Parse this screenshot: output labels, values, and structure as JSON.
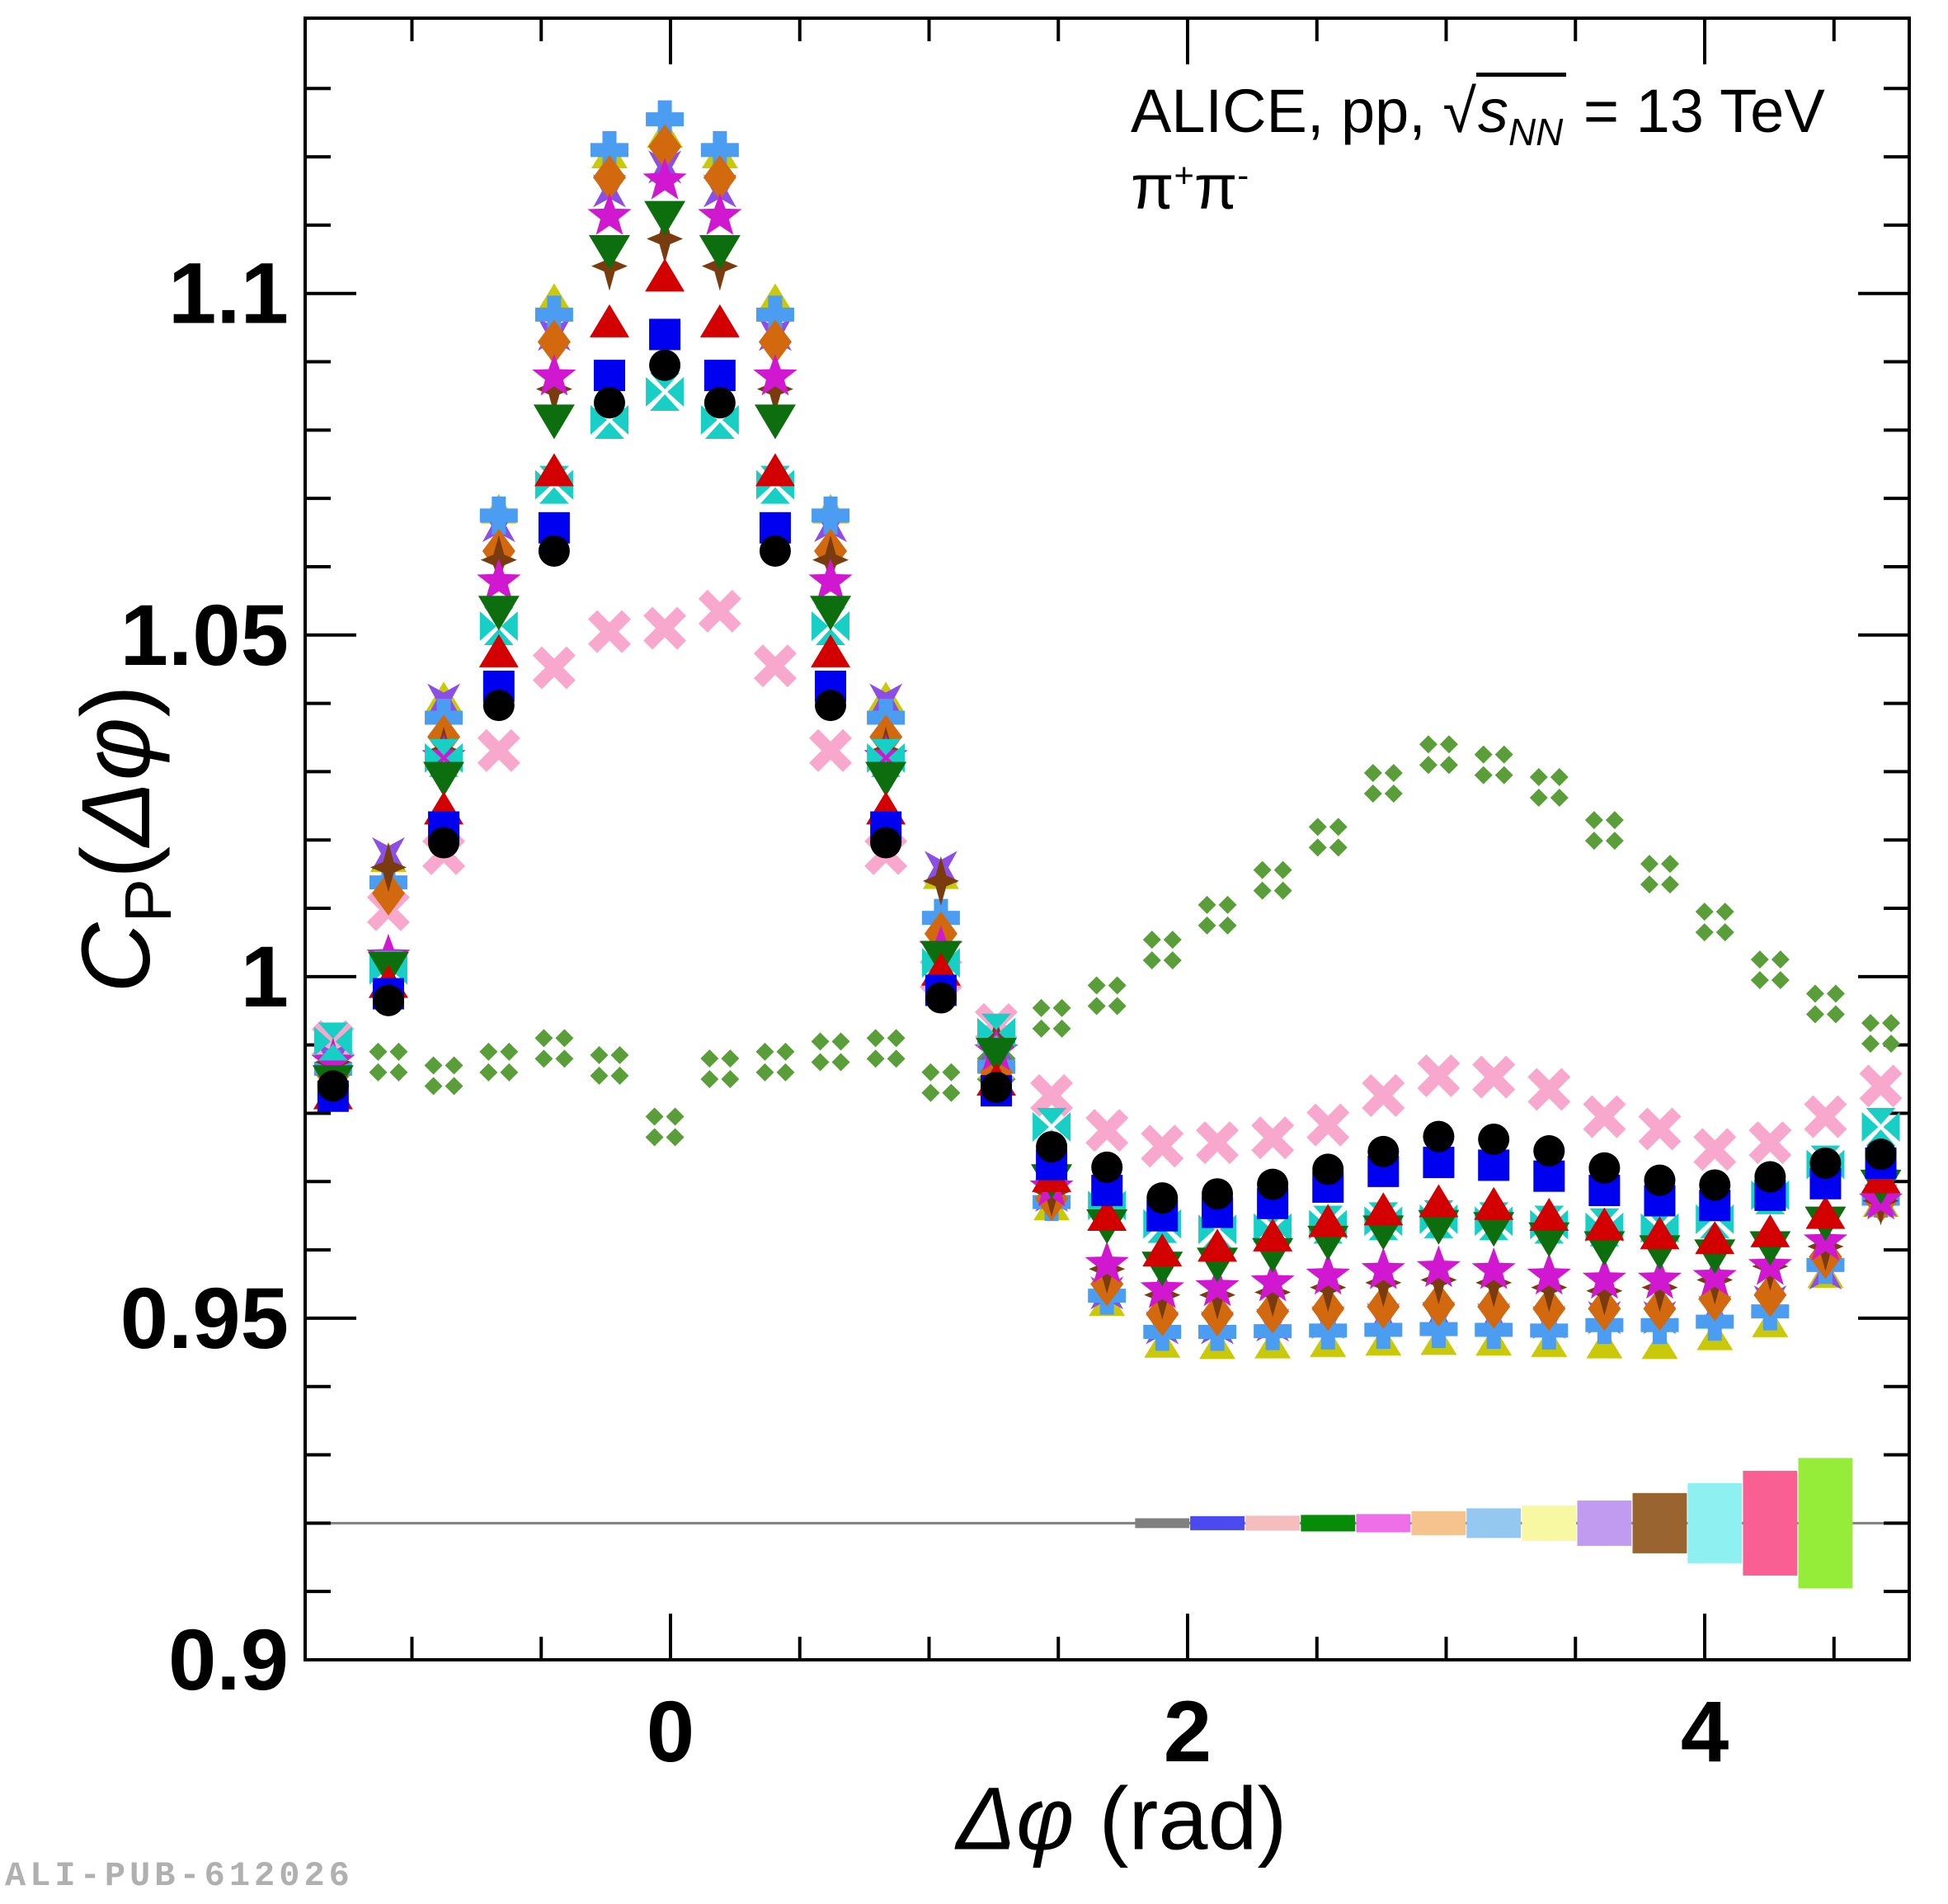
{
  "chart_data": {
    "type": "scatter",
    "annotation": {
      "line1_prefix": "ALICE, pp, ",
      "sqrt_symbol": "√",
      "sqrt_radicand": "s",
      "sqrt_subscript": "NN",
      "line1_suffix": " = 13 TeV",
      "pair_parts": [
        "π",
        "+",
        "π",
        "-"
      ]
    },
    "xlabel": {
      "phi": "Δφ",
      "rest": " (rad)"
    },
    "ylabel": {
      "c": "C",
      "sub": "P",
      "open": "(",
      "phi": "Δφ",
      "close": ")"
    },
    "watermark": "ALI-PUB-612026",
    "axes": {
      "x": {
        "min": -1.413,
        "max": 4.791,
        "major_ticks": [
          {
            "v": 0,
            "label": "0"
          },
          {
            "v": 2,
            "label": "2"
          },
          {
            "v": 4,
            "label": "4"
          }
        ],
        "minor_step": 0.5
      },
      "y": {
        "min": 0.9,
        "max": 1.1403,
        "major_ticks": [
          {
            "v": 0.9,
            "label": "0.9"
          },
          {
            "v": 0.95,
            "label": "0.95"
          },
          {
            "v": 1.0,
            "label": "1"
          },
          {
            "v": 1.05,
            "label": "1.05"
          },
          {
            "v": 1.1,
            "label": "1.1"
          }
        ],
        "minor_step": 0.01
      }
    },
    "x": [
      -1.305,
      -1.091,
      -0.877,
      -0.664,
      -0.45,
      -0.236,
      -0.022,
      0.191,
      0.405,
      0.619,
      0.833,
      1.046,
      1.26,
      1.474,
      1.688,
      1.902,
      2.115,
      2.329,
      2.543,
      2.757,
      2.971,
      3.184,
      3.398,
      3.612,
      3.826,
      4.039,
      4.253,
      4.467,
      4.681
    ],
    "series": [
      {
        "name": "green-clover",
        "marker": "four-diamond-clover",
        "color": "#5a9e3a",
        "values": [
          0.9905,
          0.9875,
          0.9855,
          0.9875,
          0.9895,
          0.987,
          0.978,
          0.9865,
          0.9875,
          0.989,
          0.9895,
          0.9845,
          0.9865,
          0.9939,
          0.9972,
          1.0039,
          1.009,
          1.0141,
          1.0204,
          1.0283,
          1.0325,
          1.031,
          1.0277,
          1.0214,
          1.015,
          1.008,
          1.001,
          0.996,
          0.9917
        ]
      },
      {
        "name": "pink-x",
        "marker": "thick-x",
        "color": "#f8a8cc",
        "values": [
          0.9905,
          1.0098,
          1.018,
          1.0331,
          1.0452,
          1.0505,
          1.051,
          1.0535,
          1.0455,
          1.0331,
          1.018,
          1.0003,
          0.993,
          0.9826,
          0.9775,
          0.9752,
          0.9757,
          0.9764,
          0.9783,
          0.9826,
          0.9855,
          0.9853,
          0.9835,
          0.9795,
          0.9777,
          0.9747,
          0.9757,
          0.9795,
          0.984
        ]
      },
      {
        "name": "yellow-triangle",
        "marker": "triangle-up-small",
        "color": "#c9c90a",
        "values": [
          0.988,
          1.0175,
          1.041,
          1.0685,
          1.0993,
          1.1205,
          1.1235,
          1.1205,
          1.0993,
          1.0685,
          1.041,
          1.015,
          0.9872,
          0.9665,
          0.9525,
          0.9464,
          0.9462,
          0.9463,
          0.9465,
          0.9467,
          0.9468,
          0.9467,
          0.9465,
          0.9463,
          0.9462,
          0.9475,
          0.9494,
          0.9566,
          0.967
        ]
      },
      {
        "name": "purple-x-star",
        "marker": "four-point-star-x",
        "color": "#8b4fe6",
        "values": [
          0.988,
          1.018,
          1.0405,
          1.066,
          1.094,
          1.115,
          1.1185,
          1.115,
          1.094,
          1.066,
          1.0405,
          1.016,
          0.99,
          0.968,
          0.9537,
          0.9486,
          0.9486,
          0.949,
          0.9494,
          0.9498,
          0.95,
          0.9498,
          0.9494,
          0.9501,
          0.9501,
          0.9509,
          0.9524,
          0.9566,
          0.9672
        ]
      },
      {
        "name": "lightblue-plus",
        "marker": "thick-plus",
        "color": "#4a9df0",
        "values": [
          0.9865,
          1.0138,
          1.0379,
          1.0675,
          1.0969,
          1.121,
          1.1255,
          1.121,
          1.0969,
          1.0675,
          1.0379,
          1.0086,
          0.9868,
          0.967,
          0.9533,
          0.948,
          0.948,
          0.9481,
          0.9482,
          0.9483,
          0.9484,
          0.9483,
          0.9482,
          0.949,
          0.949,
          0.9495,
          0.951,
          0.9578,
          0.9675
        ]
      },
      {
        "name": "orange-diamond",
        "marker": "diamond",
        "color": "#d2690e",
        "values": [
          0.9855,
          1.0122,
          1.0351,
          1.0623,
          1.0929,
          1.117,
          1.1215,
          1.117,
          1.0929,
          1.0623,
          1.0351,
          1.0063,
          0.986,
          0.9675,
          0.955,
          0.9506,
          0.9506,
          0.951,
          0.9514,
          0.9517,
          0.952,
          0.9517,
          0.9514,
          0.9514,
          0.9514,
          0.9528,
          0.9534,
          0.959,
          0.9672
        ]
      },
      {
        "name": "brown-four-star",
        "marker": "four-point-star",
        "color": "#7a3c0f",
        "values": [
          0.9875,
          1.016,
          1.033,
          1.061,
          1.086,
          1.104,
          1.108,
          1.104,
          1.086,
          1.061,
          1.033,
          1.014,
          0.9905,
          0.9685,
          0.9572,
          0.9534,
          0.9534,
          0.9538,
          0.9545,
          0.9552,
          0.9556,
          0.9552,
          0.9545,
          0.954,
          0.9545,
          0.9556,
          0.9576,
          0.9605,
          0.9672
        ]
      },
      {
        "name": "magenta-star",
        "marker": "five-point-star",
        "color": "#d018d0",
        "values": [
          0.9875,
          1.0029,
          1.0321,
          1.0578,
          1.0878,
          1.1113,
          1.1165,
          1.1113,
          1.0878,
          1.0578,
          1.0321,
          1.0041,
          0.989,
          0.9691,
          0.9579,
          0.9542,
          0.9545,
          0.9552,
          0.9562,
          0.957,
          0.9573,
          0.957,
          0.9562,
          0.9556,
          0.9556,
          0.956,
          0.9576,
          0.9612,
          0.9672
        ]
      },
      {
        "name": "cyan-cross",
        "marker": "cross-pattee",
        "color": "#17cfc4",
        "values": [
          0.9905,
          1.001,
          1.032,
          1.0513,
          1.072,
          1.0815,
          1.0856,
          1.0815,
          1.072,
          1.0513,
          1.032,
          1.002,
          0.9918,
          0.978,
          0.9665,
          0.9638,
          0.963,
          0.9632,
          0.9637,
          0.9642,
          0.9645,
          0.9642,
          0.9637,
          0.9633,
          0.9632,
          0.9645,
          0.968,
          0.9725,
          0.978
        ]
      },
      {
        "name": "green-triangle-down",
        "marker": "triangle-down",
        "color": "#0d6e0d",
        "values": [
          0.9845,
          1.0011,
          1.0289,
          1.0532,
          1.0812,
          1.106,
          1.111,
          1.106,
          1.0812,
          1.0532,
          1.0289,
          1.0027,
          0.9885,
          0.97,
          0.9634,
          0.9572,
          0.9578,
          0.9592,
          0.961,
          0.9625,
          0.9633,
          0.963,
          0.9615,
          0.9602,
          0.9596,
          0.959,
          0.9602,
          0.9638,
          0.9692
        ]
      },
      {
        "name": "red-triangle-up",
        "marker": "triangle-up",
        "color": "#d20000",
        "values": [
          0.983,
          0.9993,
          1.0247,
          1.0477,
          1.0742,
          1.096,
          1.1027,
          1.096,
          1.0742,
          1.0477,
          1.0247,
          1.0011,
          0.985,
          0.9709,
          0.9652,
          0.96,
          0.9607,
          0.9622,
          0.9643,
          0.966,
          0.9672,
          0.9668,
          0.9652,
          0.9638,
          0.9625,
          0.9618,
          0.9628,
          0.9655,
          0.9707
        ]
      },
      {
        "name": "blue-square",
        "marker": "square",
        "color": "#0000f0",
        "values": [
          0.9825,
          0.9975,
          1.0219,
          1.0425,
          1.0657,
          1.088,
          1.094,
          1.088,
          1.0657,
          1.0425,
          1.0219,
          0.998,
          0.9833,
          0.9725,
          0.9687,
          0.965,
          0.9655,
          0.9668,
          0.9692,
          0.9715,
          0.9728,
          0.9724,
          0.9708,
          0.9687,
          0.9672,
          0.9665,
          0.968,
          0.9697,
          0.9727
        ]
      },
      {
        "name": "black-circle",
        "marker": "circle",
        "color": "#000000",
        "values": [
          0.984,
          0.9965,
          1.0196,
          1.0397,
          1.0623,
          1.084,
          1.0895,
          1.084,
          1.0623,
          1.0397,
          1.0196,
          0.9969,
          0.9838,
          0.9751,
          0.9721,
          0.9676,
          0.9682,
          0.9696,
          0.9718,
          0.9744,
          0.9766,
          0.9762,
          0.9745,
          0.972,
          0.9702,
          0.9695,
          0.9707,
          0.9727,
          0.974
        ]
      }
    ],
    "reference_line": {
      "y": 0.92,
      "color": "#808080"
    },
    "syst_boxes": {
      "line_value": 0.92,
      "half_width": 0.105,
      "centers": [
        1.902,
        2.115,
        2.329,
        2.543,
        2.757,
        2.971,
        3.184,
        3.398,
        3.612,
        3.826,
        4.039,
        4.253,
        4.467
      ],
      "half_heights": [
        0.00072,
        0.00103,
        0.00109,
        0.00121,
        0.00133,
        0.00175,
        0.00217,
        0.0026,
        0.00332,
        0.00441,
        0.00586,
        0.00767,
        0.00954
      ],
      "colors": [
        "#808080",
        "#4a4af0",
        "#f5bdbd",
        "#078c07",
        "#ee6fe8",
        "#f6c28e",
        "#94c8f0",
        "#f8f8a2",
        "#c09bf0",
        "#9a6430",
        "#8ff0f2",
        "#fa5f93",
        "#95ed3a"
      ]
    }
  }
}
